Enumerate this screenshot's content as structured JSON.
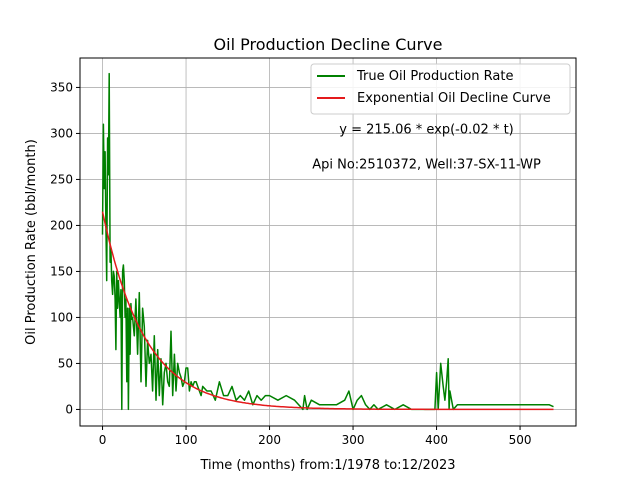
{
  "chart_data": {
    "type": "line",
    "title": "Oil Production Decline Curve",
    "xlabel": "Time (months) from:1/1978 to:12/2023",
    "ylabel": "Oil Production Rate (bbl/month)",
    "xlim": [
      -27,
      567
    ],
    "ylim": [
      -18,
      382
    ],
    "xticks": [
      0,
      100,
      200,
      300,
      400,
      500
    ],
    "yticks": [
      0,
      50,
      100,
      150,
      200,
      250,
      300,
      350
    ],
    "grid": true,
    "legend_position": "top-right",
    "annotations": [
      {
        "text": "y = 215.06 * exp(-0.02 * t)",
        "x": 388,
        "y": 300
      },
      {
        "text": "Api No:2510372, Well:37-SX-11-WP",
        "x": 388,
        "y": 262
      }
    ],
    "series": [
      {
        "name": "True Oil Production Rate",
        "color": "#008000",
        "x": [
          0,
          1,
          2,
          3,
          4,
          5,
          6,
          7,
          8,
          9,
          10,
          11,
          12,
          13,
          14,
          15,
          16,
          17,
          18,
          19,
          20,
          21,
          22,
          23,
          24,
          25,
          26,
          27,
          28,
          29,
          30,
          31,
          32,
          33,
          34,
          35,
          36,
          37,
          38,
          40,
          42,
          44,
          46,
          48,
          50,
          52,
          54,
          56,
          58,
          60,
          62,
          64,
          66,
          68,
          70,
          72,
          74,
          76,
          78,
          80,
          82,
          84,
          86,
          88,
          90,
          92,
          94,
          96,
          98,
          100,
          102,
          104,
          106,
          108,
          110,
          112,
          114,
          116,
          118,
          120,
          125,
          130,
          135,
          140,
          145,
          150,
          155,
          160,
          165,
          170,
          175,
          180,
          185,
          190,
          195,
          200,
          210,
          220,
          230,
          240,
          242,
          245,
          250,
          260,
          270,
          280,
          290,
          295,
          300,
          305,
          310,
          315,
          320,
          325,
          330,
          340,
          350,
          360,
          370,
          380,
          390,
          398,
          400,
          402,
          405,
          408,
          410,
          412,
          414,
          415,
          416,
          418,
          420,
          425,
          430,
          440,
          450,
          460,
          470,
          480,
          490,
          500,
          510,
          520,
          530,
          535,
          540
        ],
        "y": [
          190,
          310,
          240,
          280,
          200,
          140,
          295,
          255,
          365,
          160,
          175,
          140,
          125,
          150,
          145,
          120,
          65,
          150,
          110,
          140,
          120,
          100,
          130,
          0,
          150,
          157,
          140,
          100,
          120,
          30,
          110,
          0,
          110,
          60,
          115,
          98,
          100,
          90,
          80,
          120,
          60,
          127,
          30,
          110,
          90,
          25,
          75,
          50,
          60,
          20,
          80,
          10,
          65,
          15,
          55,
          5,
          40,
          50,
          30,
          25,
          85,
          15,
          60,
          20,
          50,
          40,
          35,
          25,
          30,
          45,
          45,
          20,
          30,
          25,
          30,
          30,
          25,
          20,
          15,
          25,
          20,
          20,
          10,
          30,
          15,
          15,
          25,
          10,
          15,
          10,
          20,
          5,
          15,
          10,
          15,
          15,
          10,
          15,
          10,
          0,
          15,
          0,
          10,
          5,
          5,
          5,
          10,
          20,
          0,
          10,
          15,
          5,
          0,
          5,
          0,
          5,
          0,
          5,
          0,
          0,
          0,
          0,
          40,
          0,
          50,
          25,
          10,
          30,
          55,
          0,
          20,
          10,
          0,
          5,
          5,
          5,
          5,
          5,
          5,
          5,
          5,
          5,
          5,
          5,
          5,
          5,
          3
        ]
      },
      {
        "name": "Exponential Oil Decline Curve",
        "color": "#e41a1c",
        "a": 215.06,
        "b": 0.02,
        "x_range": [
          0,
          540
        ]
      }
    ]
  }
}
